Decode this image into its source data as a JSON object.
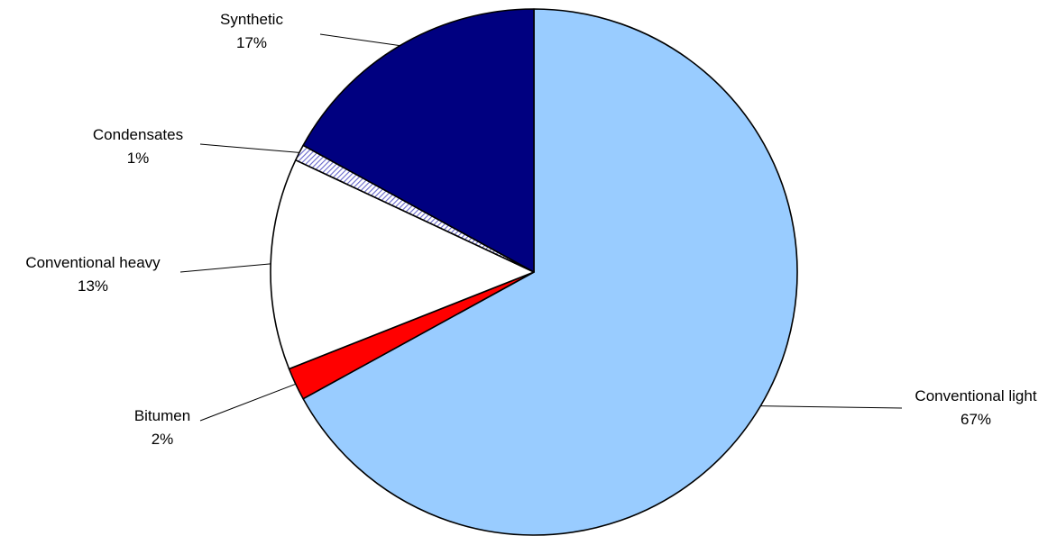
{
  "chart_data": {
    "type": "pie",
    "title": "",
    "start_angle_deg": 0,
    "direction": "clockwise",
    "slices": [
      {
        "label": "Conventional light",
        "value": 67,
        "value_label": "67%",
        "color": "#99CCFF",
        "pattern": "solid"
      },
      {
        "label": "Bitumen",
        "value": 2,
        "value_label": "2%",
        "color": "#FF0000",
        "pattern": "solid"
      },
      {
        "label": "Conventional heavy",
        "value": 13,
        "value_label": "13%",
        "color": "#FFFFFF",
        "pattern": "solid"
      },
      {
        "label": "Condensates",
        "value": 1,
        "value_label": "1%",
        "color": "#6666CC",
        "pattern": "diagonal-hatch"
      },
      {
        "label": "Synthetic",
        "value": 17,
        "value_label": "17%",
        "color": "#000080",
        "pattern": "solid"
      }
    ],
    "legend": "none"
  }
}
